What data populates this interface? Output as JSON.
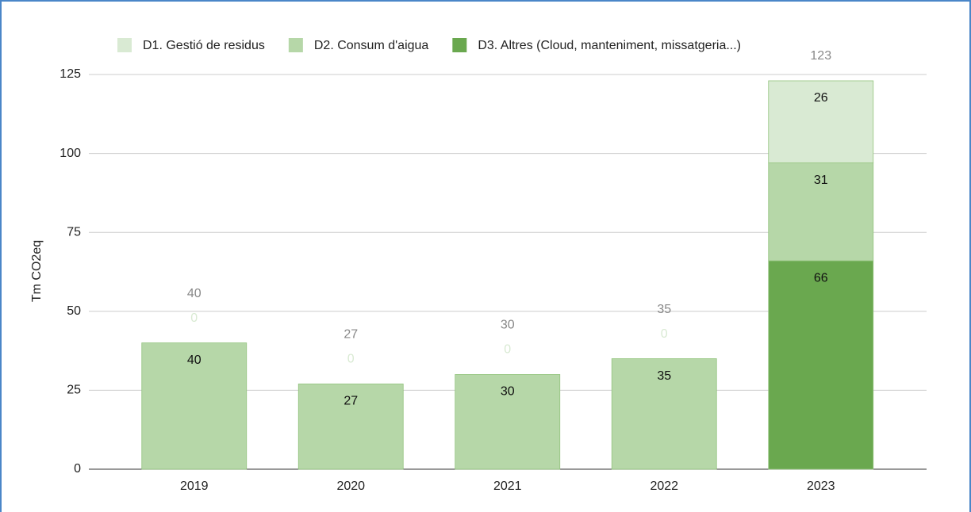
{
  "chart_data": {
    "type": "bar",
    "stacked": true,
    "categories": [
      "2019",
      "2020",
      "2021",
      "2022",
      "2023"
    ],
    "series": [
      {
        "name": "D1. Gestió de residus",
        "color": "#d9ead3",
        "values": [
          0,
          0,
          0,
          0,
          26
        ]
      },
      {
        "name": "D2. Consum d'aigua",
        "color": "#b6d7a8",
        "values": [
          40,
          27,
          30,
          35,
          31
        ]
      },
      {
        "name": "D3. Altres (Cloud, manteniment, missatgeria...)",
        "color": "#6aa84f",
        "values": [
          0,
          0,
          0,
          0,
          66
        ]
      }
    ],
    "totals": [
      40,
      27,
      30,
      35,
      123
    ],
    "ylabel": "Tm CO2eq",
    "ylim": [
      0,
      125
    ],
    "yticks": [
      0,
      25,
      50,
      75,
      100,
      125
    ],
    "grid": true,
    "legend": "top"
  }
}
